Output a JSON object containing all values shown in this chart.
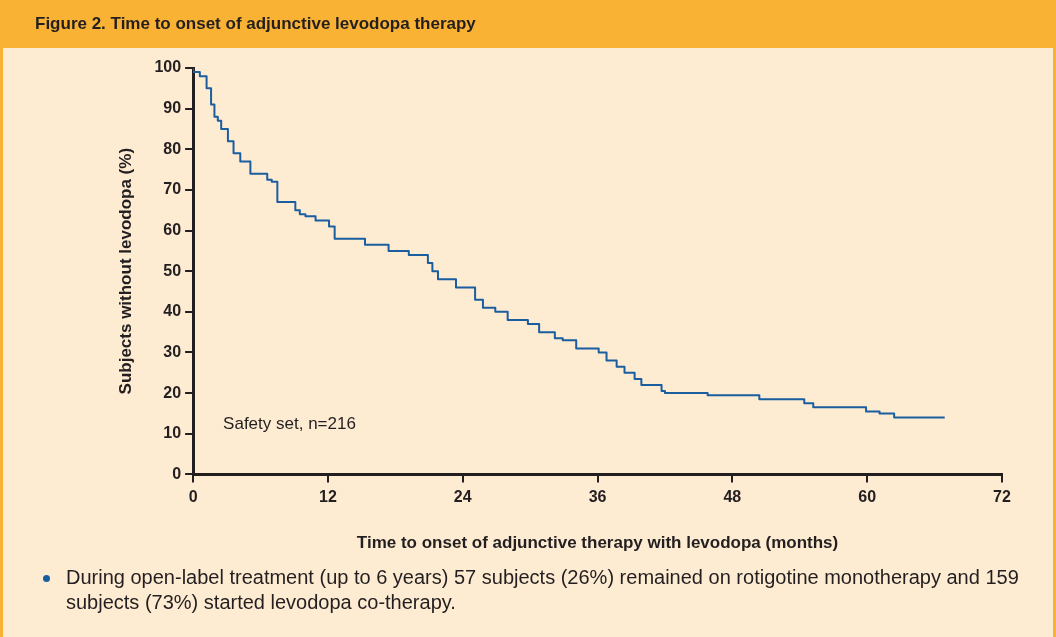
{
  "chart_data": {
    "type": "step",
    "title": "Figure 2. Time to onset of adjunctive levodopa therapy",
    "xlabel": "Time to onset of adjunctive therapy with levodopa (months)",
    "ylabel": "Subjects without levodopa (%)",
    "annotations": [
      "Safety set, n=216",
      "During open-label treatment (up to 6 years) 57 subjects (26%) remained on rotigotine monotherapy and 159 subjects (73%) started levodopa co-therapy."
    ],
    "series": [
      {
        "color": "#1a5ea0",
        "x": [
          0,
          0.6,
          1.2,
          1.6,
          1.9,
          2.2,
          2.5,
          3.1,
          3.6,
          4.2,
          5.1,
          6.6,
          7,
          7.5,
          9.1,
          9.5,
          10,
          10.9,
          12.1,
          12.6,
          15.3,
          17.4,
          19.2,
          20.9,
          21.3,
          21.8,
          23.4,
          25.1,
          25.8,
          26.9,
          28,
          29.8,
          30.8,
          32.2,
          32.9,
          34.1,
          36.1,
          36.8,
          37.7,
          38.4,
          39.3,
          39.9,
          41.7,
          42,
          45.8,
          50.4,
          54.4,
          55.2,
          59.9,
          61.1,
          62.4,
          66.9
        ],
        "values": [
          100,
          99,
          98,
          95,
          91,
          88,
          87,
          85,
          82,
          79,
          77,
          74,
          72.5,
          72,
          67,
          65,
          64,
          63.5,
          62.5,
          61,
          58,
          56.5,
          55,
          54,
          52,
          50,
          48,
          46,
          43,
          41,
          40,
          38,
          37,
          35,
          33.5,
          33,
          31,
          30,
          28,
          26.5,
          25,
          23.5,
          22,
          20.5,
          20,
          19.5,
          18.5,
          17.5,
          16.5,
          15.5,
          15,
          14
        ]
      }
    ],
    "xlim": [
      0,
      72
    ],
    "xticks": [
      0,
      12,
      24,
      36,
      48,
      60,
      72
    ],
    "ylim": [
      0,
      100
    ],
    "yticks": [
      0,
      10,
      20,
      30,
      40,
      50,
      60,
      70,
      80,
      90,
      100
    ],
    "marker": "none",
    "line_style": "solid"
  }
}
